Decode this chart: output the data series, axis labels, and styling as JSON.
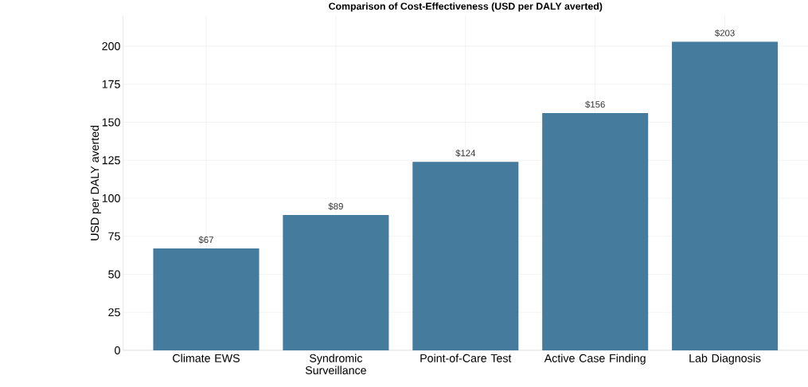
{
  "chart_data": {
    "type": "bar",
    "title": "Comparison of Cost-Effectiveness (USD per DALY averted)",
    "ylabel": "USD per DALY averted",
    "categories": [
      "Climate EWS",
      "Syndromic Surveillance",
      "Point-of-Care Test",
      "Active Case Finding",
      "Lab Diagnosis"
    ],
    "values": [
      67,
      89,
      124,
      156,
      203
    ],
    "color": "#457b9d",
    "value_labels": [
      "$67",
      "$89",
      "$124",
      "$156",
      "$203"
    ],
    "ylim": [
      0,
      220
    ],
    "yticks": [
      0,
      25,
      50,
      75,
      100,
      125,
      150,
      175,
      200
    ],
    "grid": true
  }
}
